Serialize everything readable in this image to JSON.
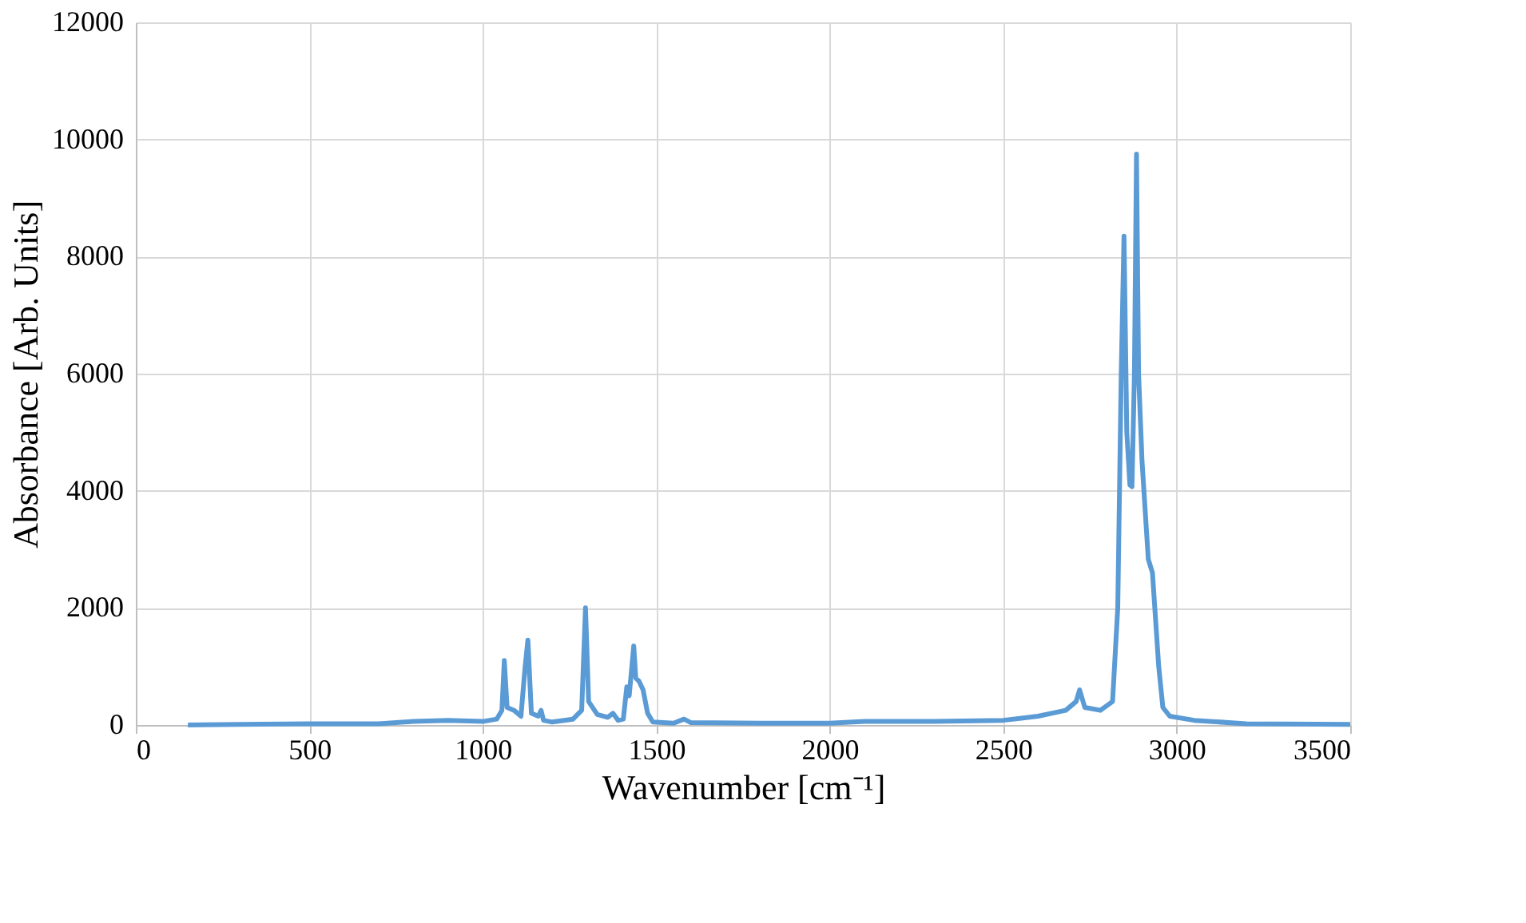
{
  "chart_data": {
    "type": "line",
    "xlabel": "Wavenumber [cm⁻¹]",
    "ylabel": "Absorbance [Arb. Units]",
    "xlim": [
      0,
      3500
    ],
    "xticks": [
      0,
      500,
      1000,
      1500,
      2000,
      2500,
      3000,
      3500
    ],
    "ylim": [
      0,
      12000
    ],
    "yticks": [
      0,
      2000,
      4000,
      6000,
      8000,
      10000,
      12000
    ],
    "grid": true,
    "series": [
      {
        "color": "#5b9bd5",
        "x": [
          150,
          300,
          500,
          700,
          800,
          900,
          1000,
          1040,
          1055,
          1062,
          1070,
          1090,
          1110,
          1122,
          1130,
          1140,
          1160,
          1168,
          1175,
          1200,
          1260,
          1285,
          1296,
          1305,
          1330,
          1360,
          1375,
          1390,
          1405,
          1415,
          1422,
          1435,
          1441,
          1450,
          1462,
          1475,
          1490,
          1550,
          1580,
          1600,
          1800,
          2000,
          2100,
          2300,
          2500,
          2600,
          2680,
          2710,
          2720,
          2735,
          2780,
          2815,
          2830,
          2840,
          2848,
          2856,
          2865,
          2871,
          2878,
          2884,
          2890,
          2900,
          2918,
          2930,
          2948,
          2960,
          2980,
          3050,
          3200,
          3500
        ],
        "values": [
          0,
          10,
          20,
          20,
          60,
          80,
          60,
          100,
          250,
          1100,
          300,
          250,
          150,
          1000,
          1450,
          200,
          150,
          250,
          80,
          50,
          100,
          250,
          2000,
          400,
          180,
          130,
          200,
          80,
          100,
          650,
          500,
          1350,
          800,
          750,
          600,
          200,
          50,
          30,
          100,
          40,
          30,
          30,
          60,
          60,
          80,
          150,
          250,
          400,
          600,
          300,
          250,
          400,
          2000,
          6000,
          8350,
          5000,
          4100,
          4070,
          6000,
          9750,
          6000,
          4500,
          2830,
          2600,
          1000,
          300,
          150,
          80,
          20,
          10
        ]
      }
    ]
  }
}
